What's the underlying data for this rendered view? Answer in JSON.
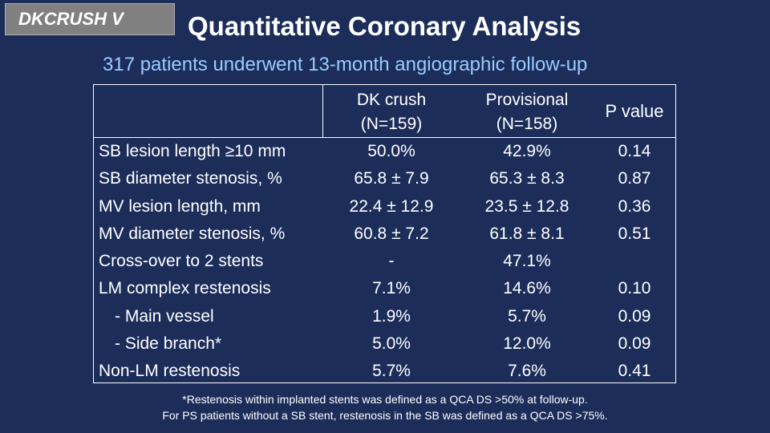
{
  "tag": "DKCRUSH V",
  "title": "Quantitative Coronary Analysis",
  "subtitle": "317 patients underwent 13-month angiographic follow-up",
  "columns": {
    "dk_crush": [
      "DK crush",
      "(N=159)"
    ],
    "provisional": [
      "Provisional",
      "(N=158)"
    ],
    "p_value": "P value"
  },
  "rows": [
    {
      "label": "SB lesion length ≥10 mm",
      "dk": "50.0%",
      "prov": "42.9%",
      "p": "0.14"
    },
    {
      "label": "SB diameter stenosis, %",
      "dk": "65.8 ± 7.9",
      "prov": "65.3 ± 8.3",
      "p": "0.87"
    },
    {
      "label": "MV lesion length, mm",
      "dk": "22.4 ± 12.9",
      "prov": "23.5 ± 12.8",
      "p": "0.36"
    },
    {
      "label": "MV diameter stenosis, %",
      "dk": "60.8 ± 7.2",
      "prov": "61.8 ± 8.1",
      "p": "0.51"
    },
    {
      "label": "Cross-over to 2 stents",
      "dk": "-",
      "prov": "47.1%",
      "p": ""
    },
    {
      "label": "LM complex restenosis",
      "dk": "7.1%",
      "prov": "14.6%",
      "p": "0.10"
    },
    {
      "label": "- Main vessel",
      "dk": "1.9%",
      "prov": "5.7%",
      "p": "0.09"
    },
    {
      "label": "- Side branch*",
      "dk": "5.0%",
      "prov": "12.0%",
      "p": "0.09"
    },
    {
      "label": "Non-LM restenosis",
      "dk": "5.7%",
      "prov": "7.6%",
      "p": "0.41"
    }
  ],
  "footnote": [
    "*Restenosis within implanted stents was defined as a QCA DS >50% at follow-up.",
    "For PS patients without a SB stent, restenosis in the SB was defined as a QCA DS >75%."
  ],
  "colors": {
    "background": "#1c2d5a",
    "subtitle": "#99ccff",
    "tag": "#808080"
  }
}
